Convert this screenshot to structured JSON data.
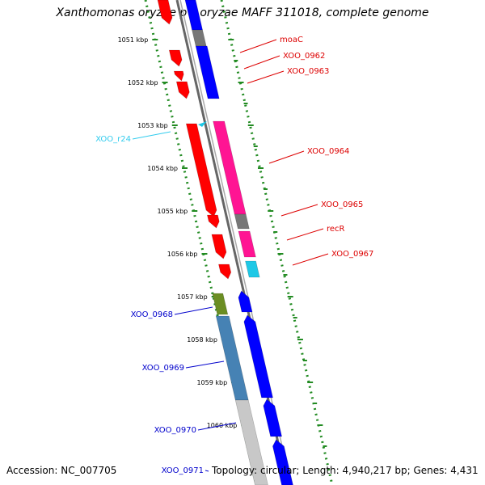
{
  "title": "Xanthomonas oryzae pv. oryzae MAFF 311018, complete genome",
  "footer": {
    "accession": "Accession: NC_007705",
    "topology": "Topology: circular; Length: 4,940,217 bp; Genes: 4,431"
  },
  "colors": {
    "red": "#ff0000",
    "blue": "#0000ff",
    "magenta": "#ff1493",
    "gray": "#777777",
    "olive": "#6b8e23",
    "steelblue": "#4682b4",
    "lightgray": "#c8c8c8",
    "cyan": "#1ec8e6",
    "green": "#228b22",
    "label_red": "#dd0000",
    "label_blue": "#0000cc",
    "label_cyan": "#33ccee"
  },
  "ruler_ticks": [
    {
      "label": "1051 kbp"
    },
    {
      "label": "1052 kbp"
    },
    {
      "label": "1053 kbp"
    },
    {
      "label": "1054 kbp"
    },
    {
      "label": "1055 kbp"
    },
    {
      "label": "1056 kbp"
    },
    {
      "label": "1057 kbp"
    },
    {
      "label": "1058 kbp"
    },
    {
      "label": "1059 kbp"
    },
    {
      "label": "1060 kbp"
    }
  ],
  "gene_labels": [
    {
      "text": "moaC",
      "color": "label_red"
    },
    {
      "text": "XOO_0962",
      "color": "label_red"
    },
    {
      "text": "XOO_0963",
      "color": "label_red"
    },
    {
      "text": "XOO_0964",
      "color": "label_red"
    },
    {
      "text": "XOO_0965",
      "color": "label_red"
    },
    {
      "text": "recR",
      "color": "label_red"
    },
    {
      "text": "XOO_0967",
      "color": "label_red"
    },
    {
      "text": "XOO_r24",
      "color": "label_cyan"
    },
    {
      "text": "XOO_0968",
      "color": "label_blue"
    },
    {
      "text": "XOO_0969",
      "color": "label_blue"
    },
    {
      "text": "XOO_0970",
      "color": "label_blue"
    },
    {
      "text": "XOO_0971",
      "color": "label_blue"
    }
  ]
}
